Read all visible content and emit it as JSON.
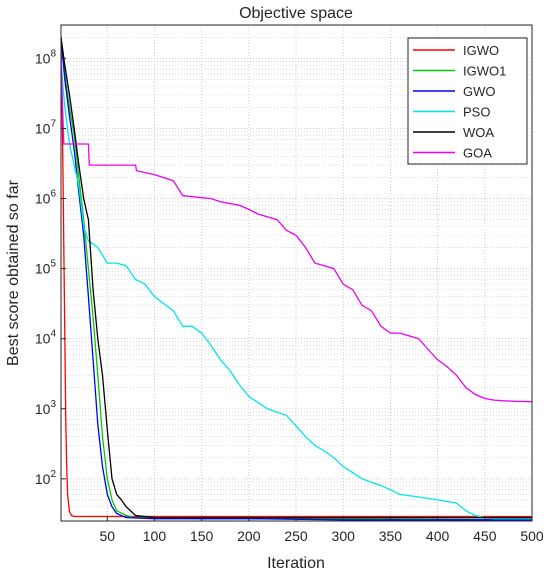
{
  "chart_data": {
    "type": "line",
    "title": "Objective space",
    "xlabel": "Iteration",
    "ylabel": "Best score obtained so far",
    "xlim": [
      1,
      500
    ],
    "ylim": [
      25,
      300000000
    ],
    "yscale": "log",
    "grid": true,
    "minor_grid": true,
    "legend_position": "top-right",
    "x_ticks": [
      50,
      100,
      150,
      200,
      250,
      300,
      350,
      400,
      450,
      500
    ],
    "y_ticks": [
      {
        "value": 100,
        "base": "10",
        "exp": "2"
      },
      {
        "value": 1000,
        "base": "10",
        "exp": "3"
      },
      {
        "value": 10000,
        "base": "10",
        "exp": "4"
      },
      {
        "value": 100000,
        "base": "10",
        "exp": "5"
      },
      {
        "value": 1000000,
        "base": "10",
        "exp": "6"
      },
      {
        "value": 10000000,
        "base": "10",
        "exp": "7"
      },
      {
        "value": 100000000,
        "base": "10",
        "exp": "8"
      }
    ],
    "series": [
      {
        "name": "IGWO",
        "color": "#ff0000",
        "x": [
          1,
          2,
          3,
          4,
          5,
          6,
          7,
          8,
          10,
          12,
          15,
          500
        ],
        "y": [
          200000000,
          30000000,
          3000000,
          200000,
          12000,
          800,
          150,
          60,
          34,
          30,
          29,
          29
        ]
      },
      {
        "name": "IGWO1",
        "color": "#00cc00",
        "x": [
          1,
          5,
          10,
          15,
          20,
          25,
          30,
          35,
          40,
          45,
          50,
          55,
          60,
          70,
          80,
          100,
          150,
          300,
          500
        ],
        "y": [
          200000000,
          60000000,
          20000000,
          8000000,
          2000000,
          500000,
          100000,
          20000,
          3000,
          400,
          100,
          50,
          35,
          30,
          28,
          28,
          27,
          27,
          26
        ]
      },
      {
        "name": "GWO",
        "color": "#0000ff",
        "x": [
          1,
          5,
          10,
          15,
          20,
          25,
          30,
          35,
          40,
          45,
          50,
          55,
          60,
          70,
          100,
          200,
          300,
          500
        ],
        "y": [
          200000000,
          50000000,
          15000000,
          5000000,
          1200000,
          300000,
          40000,
          5000,
          600,
          150,
          60,
          40,
          32,
          28,
          27,
          27,
          26,
          26
        ]
      },
      {
        "name": "PSO",
        "color": "#00e5e5",
        "x": [
          1,
          3,
          5,
          10,
          15,
          20,
          25,
          30,
          40,
          50,
          60,
          70,
          80,
          90,
          100,
          120,
          130,
          140,
          150,
          160,
          170,
          180,
          190,
          200,
          220,
          240,
          260,
          270,
          280,
          290,
          300,
          320,
          340,
          350,
          360,
          380,
          400,
          420,
          430,
          440,
          450,
          460,
          480,
          500
        ],
        "y": [
          100000000,
          40000000,
          20000000,
          6000000,
          3000000,
          1500000,
          400000,
          250000,
          200000,
          120000,
          120000,
          110000,
          70000,
          60000,
          40000,
          25000,
          15000,
          15000,
          12000,
          8000,
          5000,
          3500,
          2200,
          1500,
          1000,
          800,
          400,
          300,
          250,
          200,
          150,
          100,
          80,
          70,
          60,
          55,
          50,
          45,
          35,
          30,
          28,
          27,
          27,
          27
        ]
      },
      {
        "name": "WOA",
        "color": "#000000",
        "x": [
          1,
          5,
          10,
          15,
          20,
          25,
          30,
          35,
          40,
          45,
          50,
          55,
          60,
          65,
          70,
          80,
          100,
          200,
          300,
          500
        ],
        "y": [
          200000000,
          80000000,
          30000000,
          10000000,
          3000000,
          1000000,
          500000,
          50000,
          10000,
          3000,
          500,
          100,
          60,
          50,
          40,
          30,
          28,
          28,
          28,
          28
        ]
      },
      {
        "name": "GOA",
        "color": "#ee00ee",
        "x": [
          1,
          4,
          5,
          30,
          31,
          80,
          81,
          100,
          120,
          130,
          160,
          170,
          190,
          200,
          210,
          230,
          240,
          250,
          260,
          270,
          280,
          290,
          300,
          310,
          320,
          330,
          340,
          350,
          360,
          380,
          390,
          400,
          410,
          420,
          430,
          440,
          450,
          460,
          470,
          480,
          490,
          500
        ],
        "y": [
          100000000,
          6000000,
          6000000,
          6000000,
          3000000,
          3000000,
          2500000,
          2200000,
          1800000,
          1100000,
          1000000,
          900000,
          800000,
          700000,
          600000,
          500000,
          350000,
          300000,
          200000,
          120000,
          110000,
          100000,
          60000,
          50000,
          30000,
          25000,
          15000,
          12000,
          12000,
          10000,
          7000,
          5000,
          4000,
          3000,
          2000,
          1600,
          1400,
          1330,
          1300,
          1280,
          1270,
          1260
        ]
      }
    ]
  }
}
